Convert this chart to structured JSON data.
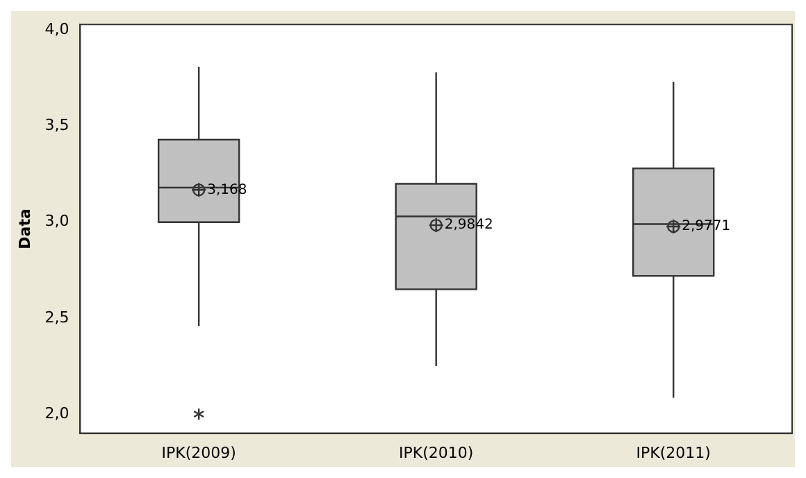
{
  "chart_data": {
    "type": "box",
    "ylabel": "Data",
    "categories": [
      "IPK(2009)",
      "IPK(2010)",
      "IPK(2011)"
    ],
    "color": "#c0c0c0",
    "boxes": [
      {
        "low": 2.46,
        "q1": 3.0,
        "median": 3.18,
        "q3": 3.43,
        "high": 3.81,
        "mean": 3.168,
        "outliers": [
          2.0
        ]
      },
      {
        "low": 2.25,
        "q1": 2.65,
        "median": 3.03,
        "q3": 3.2,
        "high": 3.78,
        "mean": 2.9842
      },
      {
        "low": 2.085,
        "q1": 2.72,
        "median": 2.99,
        "q3": 3.28,
        "high": 3.73,
        "mean": 2.9771
      }
    ],
    "ylim": [
      1.9,
      4.03
    ],
    "yticks": [
      {
        "value": 2,
        "label": "2,0"
      },
      {
        "value": 2.5,
        "label": "2,5"
      },
      {
        "value": 3,
        "label": "3,0"
      },
      {
        "value": 3.5,
        "label": "3,5"
      },
      {
        "value": 4,
        "label": "4,0"
      }
    ],
    "annotations": [
      "3,168",
      "2,9842",
      "2,9771"
    ]
  }
}
